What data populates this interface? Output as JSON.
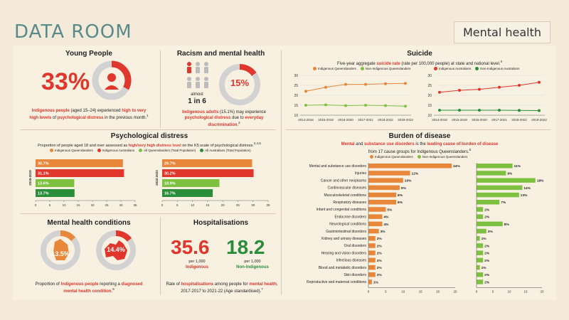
{
  "header": {
    "title": "DATA ROOM",
    "badge": "Mental health"
  },
  "young_people": {
    "title": "Young People",
    "stat": "33%",
    "caption_parts": [
      "Indigenous people",
      " (aged 15–24) experienced ",
      "high to very high levels",
      " of ",
      "psychological distress",
      " in the previous month.",
      "1"
    ]
  },
  "racism": {
    "title": "Racism and mental health",
    "almost": "almost",
    "ratio": "1 in 6",
    "stat": "15%",
    "caption_parts": [
      "Indigenous adults",
      " (15.1%) may experience ",
      "psychological distress",
      " due to ",
      "everyday discrimination",
      ".",
      "2"
    ]
  },
  "suicide": {
    "title": "Suicide",
    "subtitle_parts": [
      "Five-year aggregate ",
      "suicide rate",
      " (rate per 100,000 people) at state and national level.",
      "3"
    ],
    "colors": {
      "indigenous": "#e8873a",
      "nonindigenous": "#7ec141",
      "ind_aus": "#e0362b",
      "nonind_aus": "#2a8d3a"
    }
  },
  "psych_distress": {
    "title": "Psychological distress",
    "subtitle_parts": [
      "Proportion of people aged 18 and over assessed as ",
      "high/very high distress level",
      " on the K5 scale of psychological distress.",
      "2,4,5"
    ],
    "legend": [
      "Indigenous Queenslanders",
      "Indigenous Australians",
      "All Queenslanders (Total Population)",
      "All Australians (Total Population)"
    ],
    "colors": [
      "#e8873a",
      "#e0362b",
      "#7ec141",
      "#2a8d3a"
    ]
  },
  "conditions": {
    "title": "Mental health conditions",
    "qld_value": "13.5%",
    "aus_value": "14.4%",
    "caption_parts": [
      "Proportion of ",
      "Indigenous people",
      " reporting a ",
      "diagnosed mental health condition",
      ".",
      "6"
    ]
  },
  "hospital": {
    "title": "Hospitalisations",
    "ind_value": "35.6",
    "ind_per": "per 1,000",
    "ind_label": "Indigenous",
    "non_value": "18.2",
    "non_per": "per 1,000",
    "non_label": "Non-Indigenous",
    "caption_parts": [
      "Rate of ",
      "hospitalisations",
      " among people for ",
      "mental health",
      ", 2017-2017 to 2021-22 (Age standardised).",
      "7"
    ]
  },
  "burden": {
    "title": "Burden of disease",
    "subtitle_parts": [
      "Mental",
      " and ",
      "substance use disorders",
      " is the ",
      "leading cause of burden of disease"
    ],
    "subtitle2_parts": [
      "from 17 cause groups for Indigenous Queenslanders.",
      "8"
    ],
    "legend": [
      "Indigenous Queenslanders",
      "Non-Indigenous Queenslanders"
    ],
    "left_ticks": [
      "0",
      "5",
      "10",
      "15",
      "20",
      "25"
    ],
    "right_ticks": [
      "0",
      "5",
      "10",
      "15",
      "20"
    ]
  },
  "chart_data": [
    {
      "type": "line",
      "title": "Suicide",
      "legend": [
        "Indigenous Queenslanders",
        "Non-Indigenous Queenslanders"
      ],
      "x": [
        "2014-2018",
        "2015-2019",
        "2016-2020",
        "2017-2021",
        "2018-2022",
        "2019-2023"
      ],
      "yticks": [
        "10",
        "15",
        "20",
        "25",
        "30"
      ],
      "ylim": [
        10,
        30
      ],
      "series": [
        {
          "name": "Indigenous Queenslanders",
          "values": [
            22,
            24,
            25.5,
            25.5,
            25.8,
            26
          ]
        },
        {
          "name": "Non-Indigenous Queenslanders",
          "values": [
            15,
            15.2,
            14.8,
            15,
            14.8,
            14.5
          ]
        }
      ]
    },
    {
      "type": "line",
      "legend": [
        "Indigenous Australians",
        "Non-Indigenous Australians"
      ],
      "x": [
        "2014-2018",
        "2015-2019",
        "2016-2020",
        "2017-2021",
        "2018-2022",
        "2019-2023"
      ],
      "yticks": [
        "10",
        "15",
        "20",
        "25",
        "30"
      ],
      "ylim": [
        10,
        30
      ],
      "series": [
        {
          "name": "Indigenous Australians",
          "values": [
            21.5,
            22.5,
            23,
            24,
            25,
            26.5
          ]
        },
        {
          "name": "Non-Indigenous Australians",
          "values": [
            12.5,
            12.5,
            12.5,
            12.5,
            12.4,
            12.3
          ]
        }
      ]
    },
    {
      "type": "bar",
      "period": "2018-2019",
      "labels": [
        "30.7%",
        "31.1%",
        "13.6%",
        "13.7%"
      ],
      "values": [
        30.7,
        31.1,
        13.6,
        13.7
      ],
      "xticks": [
        "0",
        "5",
        "10",
        "15",
        "20",
        "25",
        "30",
        "35"
      ],
      "xlim": [
        0,
        35
      ]
    },
    {
      "type": "bar",
      "period": "2022-2023",
      "labels": [
        "29.7%",
        "30.2%",
        "18.9%",
        "16.7%"
      ],
      "values": [
        29.7,
        30.2,
        18.9,
        16.7
      ],
      "xticks": [
        "0",
        "5",
        "10",
        "15",
        "20",
        "25",
        "30",
        "35"
      ],
      "xlim": [
        0,
        35
      ]
    },
    {
      "type": "bar",
      "title": "Burden of disease",
      "categories": [
        "Mental and substance use disorders",
        "Injuries",
        "Cancer and other neoplasms",
        "Cardiovascular diseases",
        "Musculoskeletal conditions",
        "Respiratory diseases",
        "Infant and congenital conditions",
        "Endocrine disorders",
        "Neurological conditions",
        "Gastrointestinal disorders",
        "Kidney and urinary diseases",
        "Oral disorders",
        "Hearing and vision disorders",
        "Infectious diseases",
        "Blood and metabolic disorders",
        "Skin disorders",
        "Reproductive and maternal conditions"
      ],
      "series": [
        {
          "name": "Indigenous Queenslanders",
          "values": [
            24,
            12,
            10,
            9,
            8,
            8,
            5,
            4,
            4,
            3,
            2,
            2,
            2,
            2,
            2,
            2,
            1
          ],
          "labels": [
            "24%",
            "12%",
            "10%",
            "9%",
            "8%",
            "8%",
            "5%",
            "4%",
            "4%",
            "3%",
            "2%",
            "2%",
            "2%",
            "2%",
            "2%",
            "2%",
            "1%"
          ]
        },
        {
          "name": "Non-Indigenous Queenslanders",
          "values": [
            11,
            9,
            18,
            14,
            13,
            7,
            2,
            2,
            8,
            3,
            1,
            2,
            2,
            2,
            1,
            2,
            2
          ],
          "labels": [
            "11%",
            "9%",
            "18%",
            "14%",
            "13%",
            "7%",
            "2%",
            "2%",
            "8%",
            "3%",
            "1%",
            "2%",
            "2%",
            "2%",
            "1%",
            "2%",
            "2%"
          ]
        }
      ]
    }
  ]
}
